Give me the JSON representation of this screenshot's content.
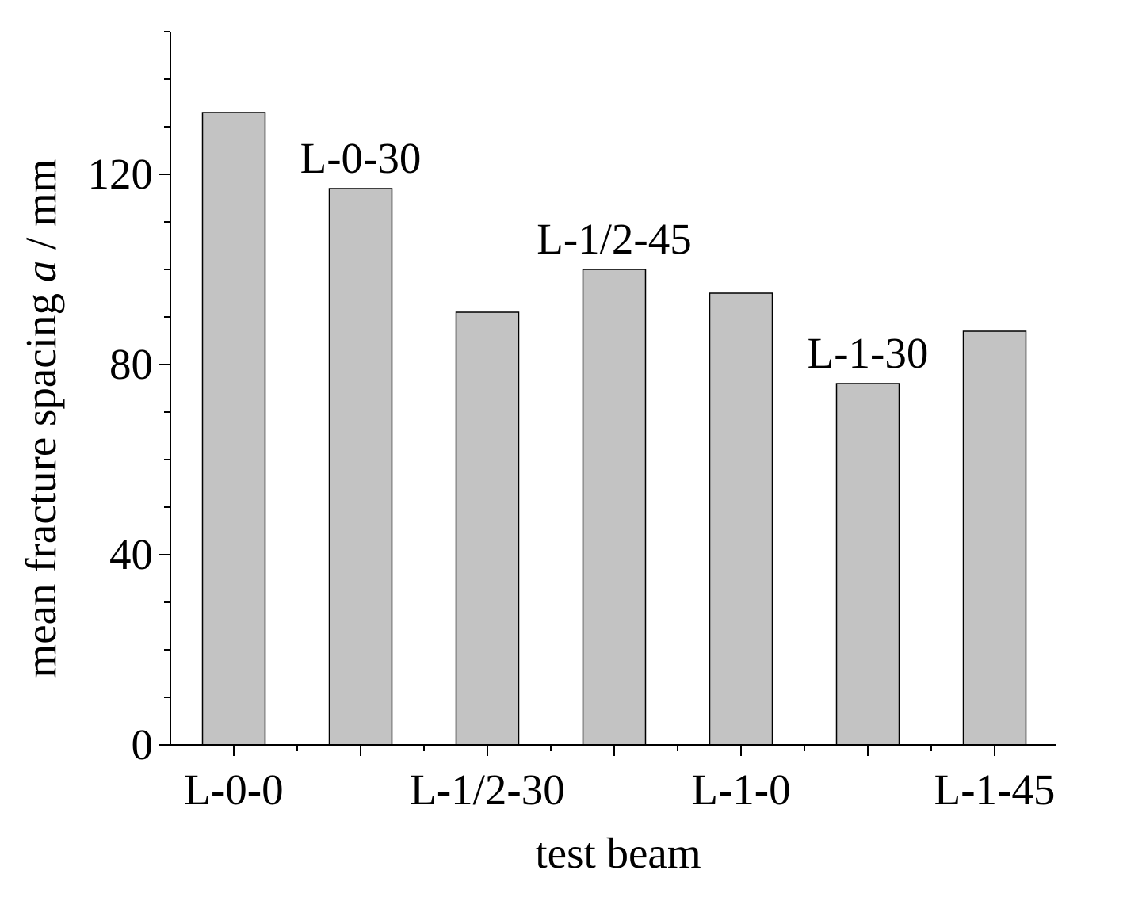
{
  "chart_data": {
    "type": "bar",
    "categories": [
      "L-0-0",
      "L-0-30",
      "L-1/2-30",
      "L-1/2-45",
      "L-1-0",
      "L-1-30",
      "L-1-45"
    ],
    "values": [
      133,
      117,
      91,
      100,
      95,
      76,
      87
    ],
    "category_label_positions": [
      "below-axis",
      "above-bar",
      "below-axis",
      "above-bar",
      "below-axis",
      "above-bar",
      "below-axis"
    ],
    "xlabel": "test beam",
    "ylabel": {
      "prefix": "mean fracture spacing ",
      "italic": "a",
      "suffix": " / mm"
    },
    "ylim": [
      0,
      150
    ],
    "y_ticks": [
      0,
      40,
      80,
      120
    ],
    "y_minor_step": 10,
    "grid": false,
    "legend": "none",
    "bar_color": "#c3c3c3",
    "axis_color": "#000000"
  }
}
